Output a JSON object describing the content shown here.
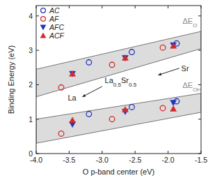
{
  "chart_data": {
    "type": "scatter",
    "x_label": "O p-band center (eV)",
    "y_label": "Binding Energy (eV)",
    "xlim": [
      -4.0,
      -1.5
    ],
    "ylim": [
      0,
      4.3
    ],
    "xticks": [
      {
        "value": -4.0,
        "label": "-4.0"
      },
      {
        "value": -3.5,
        "label": "-3.5"
      },
      {
        "value": -3.0,
        "label": "-3.0"
      },
      {
        "value": -2.5,
        "label": "-2.5"
      },
      {
        "value": -2.0,
        "label": "-2.0"
      },
      {
        "value": -1.5,
        "label": "-1.5"
      }
    ],
    "yticks": [
      0,
      1,
      2,
      3,
      4
    ],
    "legend": "upper left",
    "bands": [
      {
        "name": "ΔEO",
        "x": [
          -4.0,
          -1.5
        ],
        "lower": [
          1.65,
          3.05
        ],
        "upper": [
          2.45,
          3.55
        ]
      },
      {
        "name": "ΔEOH",
        "x": [
          -4.0,
          -1.5
        ],
        "lower": [
          0.3,
          1.2
        ],
        "upper": [
          1.0,
          1.75
        ]
      }
    ],
    "annotations": [
      {
        "text": "La"
      },
      {
        "text": "La0.5Sr0.5"
      },
      {
        "text": "Sr"
      }
    ],
    "series": [
      {
        "name": "AC",
        "color": "#2233bb",
        "marker": "circle-open",
        "x": [
          -3.2,
          -2.55,
          -1.87,
          -3.2,
          -2.55,
          -1.87
        ],
        "values": [
          2.65,
          2.95,
          3.2,
          1.15,
          1.35,
          1.52
        ]
      },
      {
        "name": "AF",
        "color": "#d42a2a",
        "marker": "circle-open",
        "x": [
          -3.62,
          -2.85,
          -2.08,
          -3.62,
          -2.85,
          -2.08
        ],
        "values": [
          1.92,
          2.58,
          3.08,
          0.58,
          1.0,
          1.32
        ]
      },
      {
        "name": "AFC",
        "color": "#2233bb",
        "marker": "triangle-down",
        "x": [
          -3.45,
          -2.65,
          -1.92,
          -3.45,
          -2.65,
          -1.92
        ],
        "values": [
          2.32,
          2.78,
          3.15,
          0.85,
          1.22,
          1.48
        ]
      },
      {
        "name": "ACF",
        "color": "#d42a2a",
        "marker": "triangle-up",
        "x": [
          -3.45,
          -2.65,
          -1.92,
          -3.45,
          -2.65,
          -1.92
        ],
        "values": [
          2.32,
          2.78,
          3.13,
          0.97,
          1.28,
          1.3
        ]
      }
    ]
  }
}
